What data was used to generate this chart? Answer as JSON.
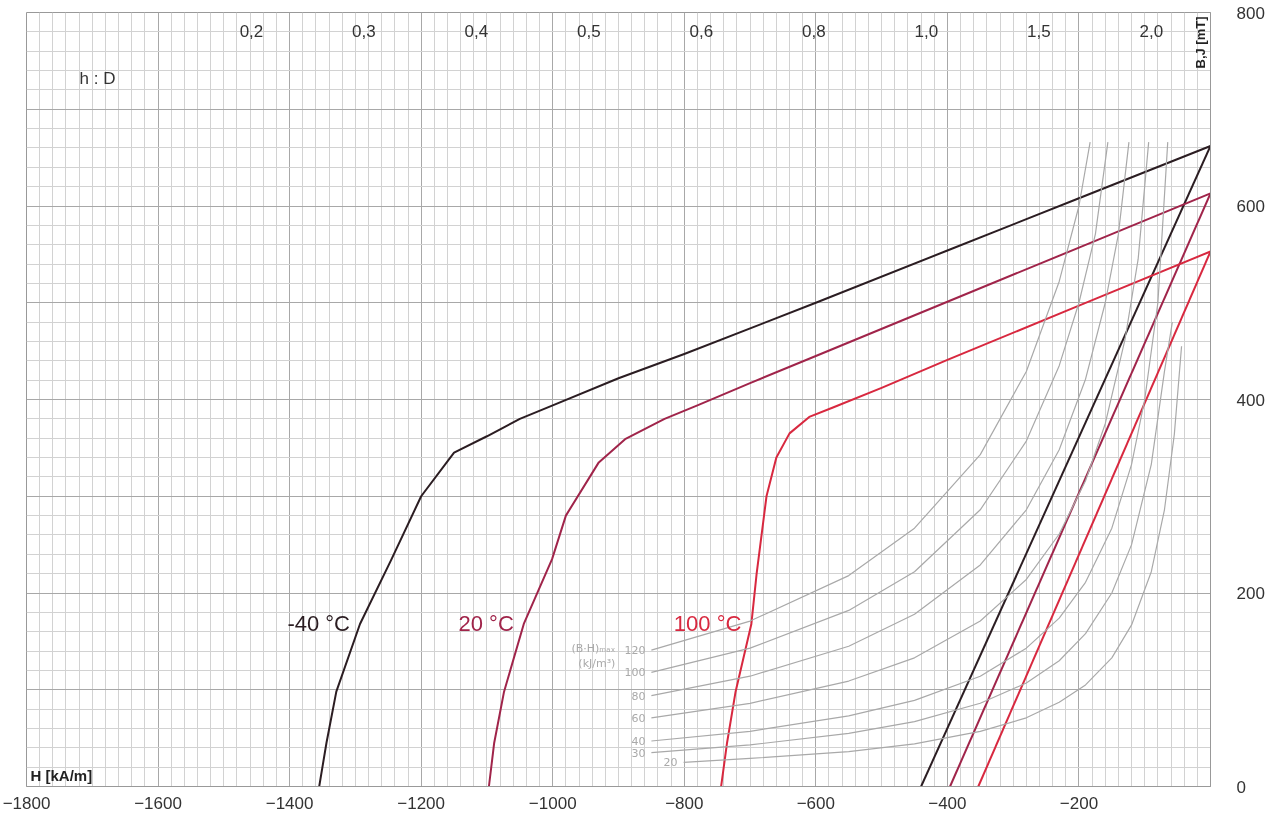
{
  "chart_data": {
    "type": "line",
    "xlabel": "H [kA/m]",
    "ylabel": "B,J [mT]",
    "xlim": [
      -1800,
      0
    ],
    "ylim": [
      0,
      800
    ],
    "xticks": [
      -1800,
      -1600,
      -1400,
      -1200,
      -1000,
      -800,
      -600,
      -400,
      -200,
      {
        "value": 0,
        "label": null
      }
    ],
    "legend_title": "(B·H)ₘₐₓ\n(kJ/m³)",
    "yticks": [
      0,
      {
        "value": 100,
        "label": null
      },
      200,
      {
        "value": 300,
        "label": null
      },
      400,
      {
        "value": 500,
        "label": null
      },
      600,
      {
        "value": 700,
        "label": null
      },
      800
    ],
    "grid": true,
    "series": [
      {
        "name": "-40 °C",
        "color": "#2b1d22",
        "x": [
          -1355,
          -1344,
          -1329,
          -1293,
          -1245,
          -1200,
          -1150,
          -1100,
          -1050,
          -1000,
          -900,
          -800,
          -600,
          -400,
          -200,
          0
        ],
        "values": [
          0,
          45,
          98,
          168,
          235,
          300,
          345,
          362,
          380,
          394,
          422,
          447,
          500,
          554,
          608,
          662
        ]
      },
      {
        "color": "#2b1d22",
        "x": [
          -440,
          0
        ],
        "values": [
          0,
          662
        ]
      },
      {
        "name": "20 °C",
        "color": "#a0244a",
        "x": [
          -1097,
          -1089,
          -1074,
          -1044,
          -1001,
          -980,
          -930,
          -890,
          -830,
          -780,
          -700,
          -600,
          -400,
          -200,
          0
        ],
        "values": [
          0,
          45,
          98,
          168,
          235,
          280,
          335,
          359,
          380,
          394,
          417,
          445,
          501,
          557,
          613
        ]
      },
      {
        "color": "#a0244a",
        "x": [
          -396,
          0
        ],
        "values": [
          0,
          613
        ]
      },
      {
        "name": "100 °C",
        "color": "#d8283f",
        "x": [
          -744,
          -735,
          -722,
          -698,
          -690,
          -675,
          -660,
          -640,
          -610,
          -573,
          -500,
          -400,
          -200,
          0
        ],
        "values": [
          0,
          45,
          98,
          168,
          220,
          300,
          340,
          365,
          382,
          392,
          412,
          441,
          497,
          553
        ]
      },
      {
        "color": "#d8283f",
        "x": [
          -353,
          0
        ],
        "values": [
          0,
          553
        ]
      },
      {
        "name": "120",
        "color": "#a9a9a9",
        "x": [
          -850,
          -700,
          -550,
          -450,
          -350,
          -280,
          -230,
          -200,
          -183
        ],
        "values": [
          141,
          171,
          218,
          267,
          343,
          429,
          522,
          600,
          666
        ]
      },
      {
        "name": "100",
        "color": "#a9a9a9",
        "x": [
          -850,
          -700,
          -550,
          -450,
          -350,
          -280,
          -230,
          -200,
          -175,
          -156
        ],
        "values": [
          118,
          143,
          182,
          222,
          286,
          357,
          435,
          500,
          571,
          666
        ]
      },
      {
        "name": "80",
        "color": "#a9a9a9",
        "x": [
          -850,
          -700,
          -550,
          -450,
          -350,
          -280,
          -230,
          -190,
          -160,
          -140,
          -124
        ],
        "values": [
          94,
          114,
          145,
          178,
          229,
          286,
          348,
          421,
          500,
          571,
          666
        ]
      },
      {
        "name": "60",
        "color": "#a9a9a9",
        "x": [
          -850,
          -700,
          -550,
          -450,
          -350,
          -280,
          -230,
          -190,
          -160,
          -130,
          -110,
          -94
        ],
        "values": [
          71,
          86,
          109,
          133,
          171,
          214,
          261,
          316,
          375,
          462,
          545,
          666
        ]
      },
      {
        "name": "40",
        "color": "#a9a9a9",
        "x": [
          -850,
          -700,
          -550,
          -450,
          -350,
          -280,
          -230,
          -190,
          -150,
          -120,
          -100,
          -80,
          -65
        ],
        "values": [
          47,
          57,
          73,
          89,
          114,
          143,
          174,
          211,
          267,
          333,
          400,
          500,
          666
        ]
      },
      {
        "name": "30",
        "color": "#a9a9a9",
        "x": [
          -850,
          -700,
          -550,
          -450,
          -350,
          -280,
          -230,
          -190,
          -150,
          -120,
          -90,
          -70,
          -58
        ],
        "values": [
          35,
          43,
          55,
          67,
          86,
          107,
          130,
          158,
          200,
          250,
          333,
          429,
          480
        ]
      },
      {
        "name": "20",
        "color": "#a9a9a9",
        "x": [
          -801,
          -700,
          -550,
          -450,
          -350,
          -280,
          -230,
          -190,
          -150,
          -120,
          -90,
          -70,
          -55,
          -44
        ],
        "values": [
          25,
          29,
          36,
          44,
          57,
          71,
          87,
          105,
          133,
          167,
          222,
          286,
          364,
          455
        ]
      }
    ],
    "annotations": [
      "h : D",
      "0,2",
      "0,3",
      "0,4",
      "0,5",
      "0,6",
      "0,8",
      "1,0",
      "1,5",
      "2,0"
    ]
  }
}
